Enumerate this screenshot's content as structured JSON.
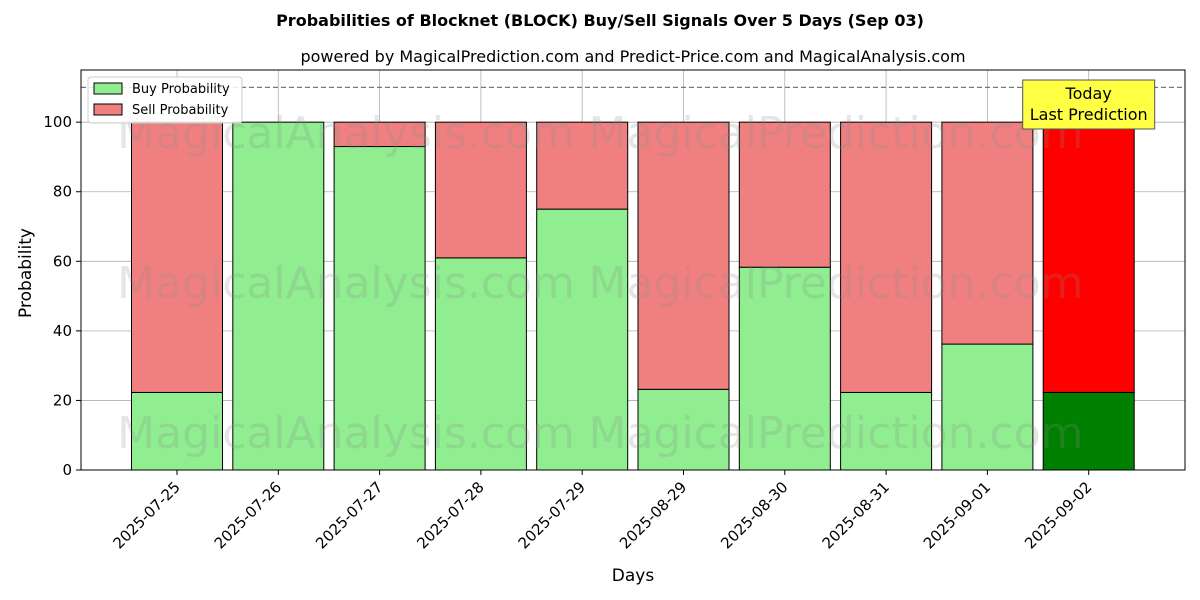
{
  "chart_data": {
    "type": "bar",
    "stacked": true,
    "title": "Probabilities of Blocknet (BLOCK) Buy/Sell Signals Over 5 Days (Sep 03)",
    "subtitle": "powered by MagicalPrediction.com and Predict-Price.com and MagicalAnalysis.com",
    "xlabel": "Days",
    "ylabel": "Probability",
    "ylim": [
      0,
      115
    ],
    "yticks": [
      0,
      20,
      40,
      60,
      80,
      100
    ],
    "grid": true,
    "legend_position": "top-left",
    "reference_line": 110,
    "categories": [
      "2025-07-25",
      "2025-07-26",
      "2025-07-27",
      "2025-07-28",
      "2025-07-29",
      "2025-08-29",
      "2025-08-30",
      "2025-08-31",
      "2025-09-01",
      "2025-09-02"
    ],
    "series": [
      {
        "name": "Buy Probability",
        "color": "#90ee90",
        "values": [
          22.3,
          100,
          93,
          61,
          75,
          23.2,
          58.3,
          22.3,
          36.2,
          22.3
        ]
      },
      {
        "name": "Sell Probability",
        "color": "#f08080",
        "values": [
          77.7,
          0,
          7,
          39,
          25,
          76.8,
          41.7,
          77.7,
          63.8,
          77.7
        ]
      }
    ],
    "highlight": {
      "index": 9,
      "buy_color": "#008000",
      "sell_color": "#ff0000"
    },
    "annotation": {
      "lines": [
        "Today",
        "Last Prediction"
      ],
      "background": "#ffff44"
    },
    "watermarks": [
      "MagicalAnalysis.com",
      "MagicalPrediction.com"
    ]
  }
}
